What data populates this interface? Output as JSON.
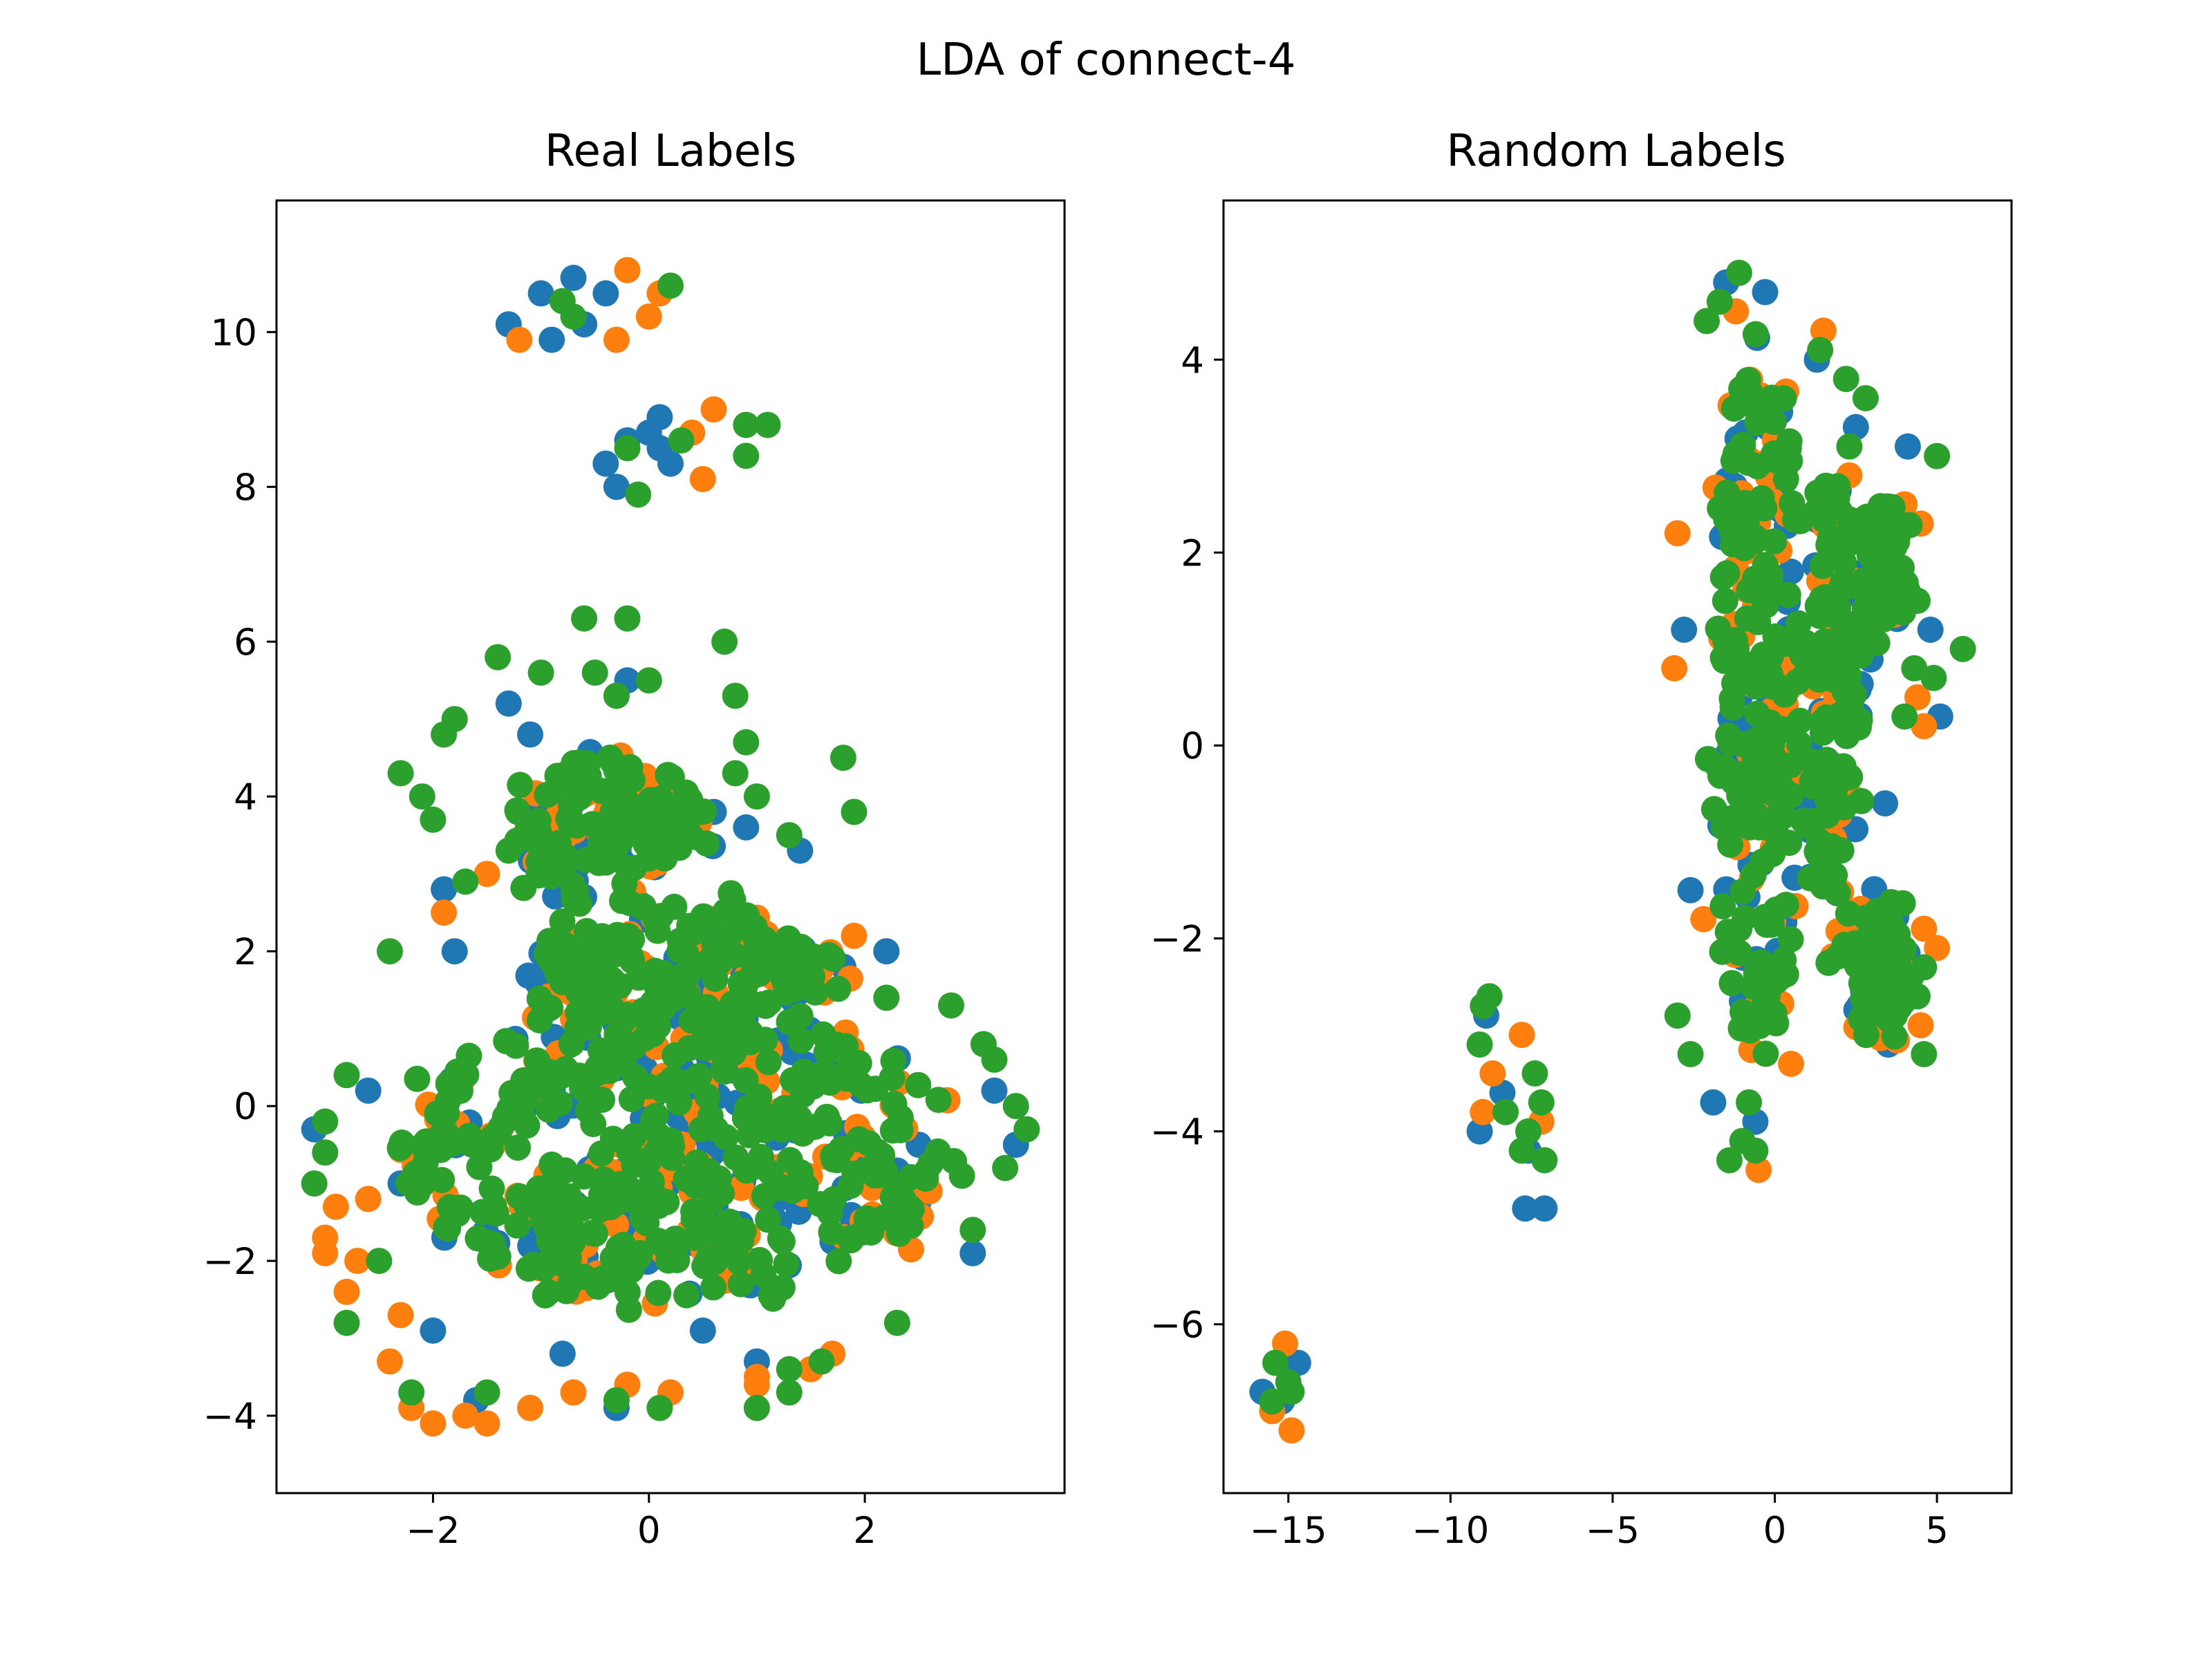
{
  "figure": {
    "title": "LDA of connect-4"
  },
  "colors": {
    "series_0": "#1f77b4",
    "series_1": "#ff7f0e",
    "series_2": "#2ca02c"
  },
  "chart_data": [
    {
      "type": "scatter",
      "title": "Real Labels",
      "xlabel": "",
      "ylabel": "",
      "xlim": [
        -3.45,
        3.85
      ],
      "ylim": [
        -5.0,
        11.7
      ],
      "xticks": [
        -2,
        0,
        2
      ],
      "yticks": [
        -4,
        -2,
        0,
        2,
        4,
        6,
        8,
        10
      ],
      "xtick_labels": [
        "−2",
        "0",
        "2"
      ],
      "ytick_labels": [
        "−4",
        "−2",
        "0",
        "2",
        "4",
        "6",
        "8",
        "10"
      ],
      "grid": false,
      "legend": "none",
      "series": [
        {
          "color": "#1f77b4",
          "points": [
            [
              -3.1,
              -0.3
            ],
            [
              -1.3,
              10.1
            ],
            [
              -1.0,
              10.5
            ],
            [
              -0.7,
              10.7
            ],
            [
              -0.9,
              9.9
            ],
            [
              -0.6,
              10.1
            ],
            [
              -0.4,
              10.5
            ],
            [
              -0.4,
              8.3
            ],
            [
              -0.2,
              8.6
            ],
            [
              0.0,
              8.7
            ],
            [
              0.1,
              8.9
            ],
            [
              0.2,
              8.3
            ],
            [
              -0.3,
              8.0
            ],
            [
              0.1,
              8.5
            ],
            [
              -1.9,
              2.8
            ],
            [
              -1.8,
              2.0
            ],
            [
              2.2,
              2.0
            ],
            [
              3.0,
              -1.9
            ],
            [
              1.4,
              3.3
            ],
            [
              0.9,
              3.6
            ],
            [
              -0.2,
              5.5
            ],
            [
              -1.3,
              5.2
            ],
            [
              -1.1,
              4.8
            ],
            [
              0.6,
              3.8
            ],
            [
              -2.6,
              0.2
            ],
            [
              -2.3,
              -1.0
            ],
            [
              2.5,
              -0.5
            ],
            [
              -0.3,
              -3.9
            ],
            [
              1.0,
              -3.3
            ],
            [
              0.5,
              -2.9
            ],
            [
              -0.8,
              -3.2
            ],
            [
              3.2,
              0.2
            ],
            [
              3.4,
              -0.5
            ],
            [
              -1.6,
              -3.8
            ],
            [
              1.8,
              1.8
            ],
            [
              -2.0,
              -2.9
            ]
          ]
        },
        {
          "color": "#ff7f0e",
          "points": [
            [
              -0.2,
              10.8
            ],
            [
              0.1,
              10.5
            ],
            [
              -1.2,
              9.9
            ],
            [
              -0.3,
              9.9
            ],
            [
              0.0,
              10.2
            ],
            [
              0.6,
              9.0
            ],
            [
              0.4,
              8.7
            ],
            [
              0.5,
              8.1
            ],
            [
              -1.9,
              2.5
            ],
            [
              1.9,
              2.2
            ],
            [
              -3.0,
              -1.7
            ],
            [
              -3.0,
              -1.9
            ],
            [
              -2.8,
              -2.4
            ],
            [
              -2.4,
              -3.3
            ],
            [
              -2.2,
              -3.9
            ],
            [
              -2.0,
              -4.1
            ],
            [
              -1.7,
              -4.0
            ],
            [
              -1.5,
              -4.1
            ],
            [
              -1.1,
              -3.9
            ],
            [
              -0.7,
              -3.7
            ],
            [
              -0.2,
              -3.6
            ],
            [
              0.2,
              -3.7
            ],
            [
              1.0,
              -3.6
            ],
            [
              1.5,
              -3.4
            ],
            [
              1.7,
              -3.2
            ],
            [
              -2.6,
              -1.2
            ],
            [
              -2.7,
              -2.0
            ],
            [
              -2.3,
              -2.7
            ],
            [
              -0.3,
              5.3
            ],
            [
              1.0,
              -3.5
            ],
            [
              0.3,
              3.6
            ],
            [
              -1.5,
              3.0
            ],
            [
              2.6,
              -1.1
            ],
            [
              -2.9,
              -1.3
            ]
          ]
        },
        {
          "color": "#2ca02c",
          "points": [
            [
              -0.8,
              10.4
            ],
            [
              -0.7,
              10.2
            ],
            [
              0.2,
              10.6
            ],
            [
              0.9,
              8.8
            ],
            [
              1.1,
              8.8
            ],
            [
              0.3,
              8.6
            ],
            [
              0.9,
              8.4
            ],
            [
              -0.2,
              8.5
            ],
            [
              -0.1,
              7.9
            ],
            [
              -0.6,
              6.3
            ],
            [
              -0.2,
              6.3
            ],
            [
              0.7,
              6.0
            ],
            [
              -1.4,
              5.8
            ],
            [
              -1.0,
              5.6
            ],
            [
              -0.5,
              5.6
            ],
            [
              -0.3,
              5.3
            ],
            [
              0.0,
              5.5
            ],
            [
              -1.8,
              5.0
            ],
            [
              -1.9,
              4.8
            ],
            [
              -2.3,
              4.3
            ],
            [
              -2.1,
              4.0
            ],
            [
              -2.0,
              3.7
            ],
            [
              1.8,
              4.5
            ],
            [
              1.9,
              3.8
            ],
            [
              1.3,
              3.5
            ],
            [
              1.0,
              4.0
            ],
            [
              0.8,
              5.3
            ],
            [
              0.9,
              4.7
            ],
            [
              0.8,
              4.3
            ],
            [
              -1.7,
              2.9
            ],
            [
              -1.3,
              3.3
            ],
            [
              -2.8,
              0.4
            ],
            [
              -3.0,
              -0.2
            ],
            [
              -3.0,
              -0.6
            ],
            [
              -3.1,
              -1.0
            ],
            [
              -2.8,
              -2.8
            ],
            [
              -2.2,
              -3.7
            ],
            [
              -1.5,
              -3.7
            ],
            [
              -0.3,
              -3.8
            ],
            [
              0.1,
              -3.9
            ],
            [
              1.0,
              -3.9
            ],
            [
              1.3,
              -3.7
            ],
            [
              1.3,
              -3.4
            ],
            [
              1.6,
              -3.3
            ],
            [
              2.3,
              -2.8
            ],
            [
              3.1,
              0.8
            ],
            [
              3.2,
              0.6
            ],
            [
              3.5,
              -0.3
            ],
            [
              3.3,
              -0.8
            ],
            [
              3.0,
              -1.6
            ],
            [
              2.8,
              1.3
            ],
            [
              2.2,
              1.4
            ],
            [
              -2.4,
              2.0
            ],
            [
              3.4,
              0.0
            ],
            [
              2.9,
              -0.9
            ],
            [
              -2.5,
              -2.0
            ]
          ]
        }
      ],
      "dense_regions": [
        {
          "center": [
            0.25,
            -0.6
          ],
          "spread": [
            2.7,
            2.0
          ]
        },
        {
          "center": [
            -0.4,
            3.6
          ],
          "spread": [
            0.9,
            1.0
          ]
        },
        {
          "center": [
            0.3,
            1.8
          ],
          "spread": [
            1.5,
            0.8
          ]
        }
      ]
    },
    {
      "type": "scatter",
      "title": "Random Labels",
      "xlabel": "",
      "ylabel": "",
      "xlim": [
        -17.0,
        7.3
      ],
      "ylim": [
        -7.75,
        5.65
      ],
      "xticks": [
        -15,
        -10,
        -5,
        0,
        5
      ],
      "yticks": [
        -6,
        -4,
        -2,
        0,
        2,
        4
      ],
      "xtick_labels": [
        "−15",
        "−10",
        "−5",
        "0",
        "5"
      ],
      "ytick_labels": [
        "−6",
        "−4",
        "−2",
        "0",
        "2",
        "4"
      ],
      "grid": false,
      "legend": "none",
      "series": [
        {
          "color": "#1f77b4",
          "points": [
            [
              -15.8,
              -6.7
            ],
            [
              -14.7,
              -6.4
            ],
            [
              -15.2,
              -6.8
            ],
            [
              -8.9,
              -2.8
            ],
            [
              -9.1,
              -4.0
            ],
            [
              -7.7,
              -4.8
            ],
            [
              -7.1,
              -4.8
            ],
            [
              -7.6,
              -4.2
            ],
            [
              -8.4,
              -3.6
            ],
            [
              4.8,
              1.2
            ],
            [
              5.1,
              0.3
            ],
            [
              4.1,
              3.1
            ],
            [
              3.5,
              -3.1
            ],
            [
              3.6,
              -2.1
            ],
            [
              -1.9,
              -3.7
            ],
            [
              -0.6,
              -3.9
            ],
            [
              -1.5,
              4.8
            ],
            [
              -0.3,
              4.7
            ],
            [
              1.3,
              4.0
            ],
            [
              2.5,
              3.3
            ],
            [
              3.4,
              -0.6
            ],
            [
              -2.8,
              1.2
            ],
            [
              -2.6,
              -1.5
            ],
            [
              2.6,
              -2.7
            ]
          ]
        },
        {
          "color": "#ff7f0e",
          "points": [
            [
              -15.1,
              -6.2
            ],
            [
              -14.9,
              -7.1
            ],
            [
              -15.5,
              -6.9
            ],
            [
              -7.8,
              -3.0
            ],
            [
              -7.2,
              -3.9
            ],
            [
              -8.7,
              -3.4
            ],
            [
              -9.0,
              -3.8
            ],
            [
              4.0,
              2.5
            ],
            [
              4.5,
              2.3
            ],
            [
              4.4,
              0.5
            ],
            [
              4.6,
              0.2
            ],
            [
              5.0,
              -2.1
            ],
            [
              4.6,
              -1.9
            ],
            [
              4.5,
              -2.9
            ],
            [
              -0.5,
              -4.4
            ],
            [
              0.5,
              -3.3
            ],
            [
              1.5,
              4.3
            ],
            [
              2.3,
              2.8
            ],
            [
              -3.0,
              2.2
            ],
            [
              -3.1,
              0.8
            ],
            [
              -2.2,
              -1.8
            ],
            [
              2.7,
              -2.9
            ],
            [
              3.9,
              -2.3
            ],
            [
              -1.2,
              4.5
            ]
          ]
        },
        {
          "color": "#2ca02c",
          "points": [
            [
              -15.4,
              -6.4
            ],
            [
              -15.0,
              -6.6
            ],
            [
              -15.5,
              -6.8
            ],
            [
              -14.9,
              -6.7
            ],
            [
              -8.8,
              -2.6
            ],
            [
              -9.0,
              -2.7
            ],
            [
              -9.1,
              -3.1
            ],
            [
              -7.4,
              -3.4
            ],
            [
              -7.2,
              -3.7
            ],
            [
              -7.6,
              -4.0
            ],
            [
              -7.8,
              -4.2
            ],
            [
              -7.1,
              -4.3
            ],
            [
              -8.3,
              -3.8
            ],
            [
              5.8,
              1.0
            ],
            [
              5.0,
              3.0
            ],
            [
              4.9,
              0.7
            ],
            [
              4.4,
              1.5
            ],
            [
              4.1,
              1.6
            ],
            [
              3.8,
              2.2
            ],
            [
              4.2,
              -2.4
            ],
            [
              4.4,
              -2.6
            ],
            [
              4.6,
              -2.3
            ],
            [
              4.6,
              -3.2
            ],
            [
              3.7,
              -2.8
            ],
            [
              -1.7,
              4.6
            ],
            [
              -1.1,
              4.9
            ],
            [
              -2.1,
              4.4
            ],
            [
              1.4,
              4.1
            ],
            [
              2.2,
              3.8
            ],
            [
              2.8,
              3.6
            ],
            [
              2.3,
              3.1
            ],
            [
              -1.0,
              -4.1
            ],
            [
              -0.6,
              -4.2
            ],
            [
              -1.4,
              -4.3
            ],
            [
              -0.8,
              -3.7
            ],
            [
              4.0,
              0.3
            ],
            [
              4.3,
              0.8
            ],
            [
              -3.0,
              -2.8
            ],
            [
              -2.6,
              -3.2
            ]
          ]
        }
      ],
      "dense_regions": [
        {
          "center": [
            -0.5,
            0.5
          ],
          "spread": [
            1.35,
            3.9
          ]
        },
        {
          "center": [
            1.8,
            0.3
          ],
          "spread": [
            0.7,
            2.8
          ]
        },
        {
          "center": [
            3.3,
            1.8
          ],
          "spread": [
            0.6,
            0.6
          ]
        },
        {
          "center": [
            3.3,
            -2.3
          ],
          "spread": [
            0.7,
            0.7
          ]
        }
      ]
    }
  ]
}
